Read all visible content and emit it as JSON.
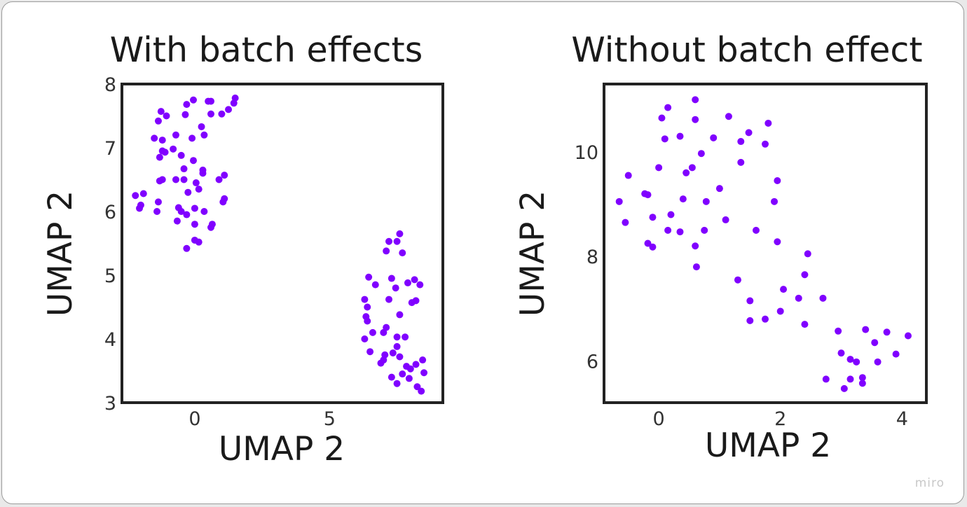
{
  "chart_data": [
    {
      "type": "scatter",
      "title": "With batch effects",
      "xlabel": "UMAP 2",
      "ylabel": "UMAP 2",
      "xlim": [
        -2.7,
        9.2
      ],
      "ylim": [
        3.0,
        8.0
      ],
      "xticks": [
        0,
        5
      ],
      "yticks": [
        3,
        4,
        5,
        6,
        7,
        8
      ],
      "grid": false,
      "point_color": "#8000ff",
      "points": [
        [
          -2.2,
          6.25
        ],
        [
          -1.9,
          6.28
        ],
        [
          -2.05,
          6.05
        ],
        [
          -2.0,
          6.1
        ],
        [
          -1.4,
          6.0
        ],
        [
          -1.35,
          6.15
        ],
        [
          -1.3,
          6.48
        ],
        [
          -1.2,
          6.5
        ],
        [
          -1.3,
          6.85
        ],
        [
          -1.2,
          6.95
        ],
        [
          -1.1,
          6.93
        ],
        [
          -1.5,
          7.15
        ],
        [
          -1.2,
          7.12
        ],
        [
          -1.35,
          7.42
        ],
        [
          -1.25,
          7.57
        ],
        [
          -1.05,
          7.5
        ],
        [
          -0.8,
          6.98
        ],
        [
          -0.7,
          7.2
        ],
        [
          -0.5,
          6.88
        ],
        [
          -0.4,
          6.67
        ],
        [
          -0.7,
          6.5
        ],
        [
          -0.4,
          6.5
        ],
        [
          -0.6,
          6.06
        ],
        [
          -0.5,
          6.0
        ],
        [
          -0.65,
          5.85
        ],
        [
          -0.3,
          5.95
        ],
        [
          -0.25,
          6.3
        ],
        [
          -0.1,
          7.15
        ],
        [
          -0.35,
          7.52
        ],
        [
          -0.3,
          7.68
        ],
        [
          -0.05,
          7.75
        ],
        [
          -0.05,
          6.8
        ],
        [
          0.05,
          6.45
        ],
        [
          0.0,
          6.05
        ],
        [
          0.0,
          5.8
        ],
        [
          0.0,
          5.55
        ],
        [
          -0.3,
          5.42
        ],
        [
          0.15,
          5.52
        ],
        [
          0.15,
          6.35
        ],
        [
          0.25,
          7.33
        ],
        [
          0.35,
          7.2
        ],
        [
          0.3,
          6.6
        ],
        [
          0.3,
          6.65
        ],
        [
          0.35,
          6.0
        ],
        [
          0.5,
          7.73
        ],
        [
          0.6,
          7.73
        ],
        [
          0.6,
          7.53
        ],
        [
          0.6,
          5.75
        ],
        [
          0.65,
          5.8
        ],
        [
          0.9,
          6.5
        ],
        [
          1.0,
          7.53
        ],
        [
          1.05,
          6.15
        ],
        [
          1.1,
          6.2
        ],
        [
          1.1,
          6.57
        ],
        [
          1.25,
          7.6
        ],
        [
          1.45,
          7.7
        ],
        [
          1.5,
          7.78
        ],
        [
          6.3,
          4.62
        ],
        [
          6.3,
          4.0
        ],
        [
          6.35,
          4.35
        ],
        [
          6.4,
          4.28
        ],
        [
          6.4,
          4.5
        ],
        [
          6.45,
          4.97
        ],
        [
          6.5,
          3.8
        ],
        [
          6.6,
          4.1
        ],
        [
          6.7,
          4.85
        ],
        [
          6.9,
          3.62
        ],
        [
          7.0,
          4.1
        ],
        [
          7.0,
          3.67
        ],
        [
          7.05,
          3.75
        ],
        [
          7.1,
          5.38
        ],
        [
          7.1,
          4.18
        ],
        [
          7.2,
          4.62
        ],
        [
          7.2,
          5.53
        ],
        [
          7.3,
          4.95
        ],
        [
          7.3,
          3.4
        ],
        [
          7.35,
          3.78
        ],
        [
          7.45,
          4.8
        ],
        [
          7.5,
          5.53
        ],
        [
          7.5,
          4.03
        ],
        [
          7.5,
          3.88
        ],
        [
          7.5,
          3.3
        ],
        [
          7.6,
          5.65
        ],
        [
          7.6,
          4.38
        ],
        [
          7.6,
          3.72
        ],
        [
          7.7,
          5.35
        ],
        [
          7.7,
          3.45
        ],
        [
          7.8,
          4.03
        ],
        [
          7.85,
          3.57
        ],
        [
          7.9,
          4.88
        ],
        [
          7.95,
          3.38
        ],
        [
          8.0,
          3.53
        ],
        [
          8.05,
          4.57
        ],
        [
          8.15,
          4.93
        ],
        [
          8.2,
          3.6
        ],
        [
          8.2,
          4.6
        ],
        [
          8.25,
          3.25
        ],
        [
          8.35,
          4.85
        ],
        [
          8.4,
          3.18
        ],
        [
          8.45,
          3.67
        ],
        [
          8.5,
          3.47
        ]
      ]
    },
    {
      "type": "scatter",
      "title": "Without batch effect",
      "xlabel": "UMAP 2",
      "ylabel": "UMAP 2",
      "xlim": [
        -0.9,
        4.4
      ],
      "ylim": [
        5.2,
        11.3
      ],
      "xticks": [
        0,
        2,
        4
      ],
      "yticks": [
        6,
        8,
        10
      ],
      "grid": false,
      "point_color": "#8000ff",
      "points": [
        [
          -0.65,
          9.05
        ],
        [
          -0.55,
          8.65
        ],
        [
          -0.5,
          9.55
        ],
        [
          -0.23,
          9.2
        ],
        [
          -0.18,
          9.18
        ],
        [
          -0.1,
          8.75
        ],
        [
          0.0,
          9.7
        ],
        [
          -0.18,
          8.25
        ],
        [
          -0.1,
          8.18
        ],
        [
          0.05,
          10.65
        ],
        [
          0.1,
          10.25
        ],
        [
          0.15,
          10.85
        ],
        [
          0.15,
          8.5
        ],
        [
          0.2,
          8.8
        ],
        [
          0.35,
          10.3
        ],
        [
          0.35,
          8.47
        ],
        [
          0.4,
          9.1
        ],
        [
          0.45,
          9.6
        ],
        [
          0.55,
          9.7
        ],
        [
          0.6,
          11.0
        ],
        [
          0.6,
          10.62
        ],
        [
          0.6,
          8.2
        ],
        [
          0.62,
          7.8
        ],
        [
          0.7,
          9.97
        ],
        [
          0.78,
          9.05
        ],
        [
          0.75,
          8.5
        ],
        [
          0.9,
          10.27
        ],
        [
          1.0,
          9.3
        ],
        [
          1.1,
          8.7
        ],
        [
          1.15,
          10.68
        ],
        [
          1.3,
          7.55
        ],
        [
          1.35,
          10.2
        ],
        [
          1.35,
          9.8
        ],
        [
          1.48,
          10.37
        ],
        [
          1.5,
          7.15
        ],
        [
          1.5,
          6.77
        ],
        [
          1.6,
          8.5
        ],
        [
          1.75,
          6.8
        ],
        [
          1.75,
          10.15
        ],
        [
          1.8,
          10.55
        ],
        [
          1.9,
          9.05
        ],
        [
          1.95,
          9.45
        ],
        [
          1.95,
          8.28
        ],
        [
          2.0,
          6.95
        ],
        [
          2.05,
          7.37
        ],
        [
          2.3,
          7.2
        ],
        [
          2.4,
          7.65
        ],
        [
          2.4,
          6.7
        ],
        [
          2.45,
          8.05
        ],
        [
          2.7,
          7.2
        ],
        [
          2.75,
          5.65
        ],
        [
          2.95,
          6.57
        ],
        [
          3.0,
          6.15
        ],
        [
          3.05,
          5.47
        ],
        [
          3.15,
          6.03
        ],
        [
          3.15,
          5.65
        ],
        [
          3.25,
          5.98
        ],
        [
          3.35,
          5.57
        ],
        [
          3.35,
          5.68
        ],
        [
          3.4,
          6.6
        ],
        [
          3.55,
          6.35
        ],
        [
          3.6,
          5.98
        ],
        [
          3.75,
          6.55
        ],
        [
          3.9,
          6.13
        ],
        [
          4.1,
          6.48
        ]
      ]
    }
  ],
  "watermark": "miro"
}
